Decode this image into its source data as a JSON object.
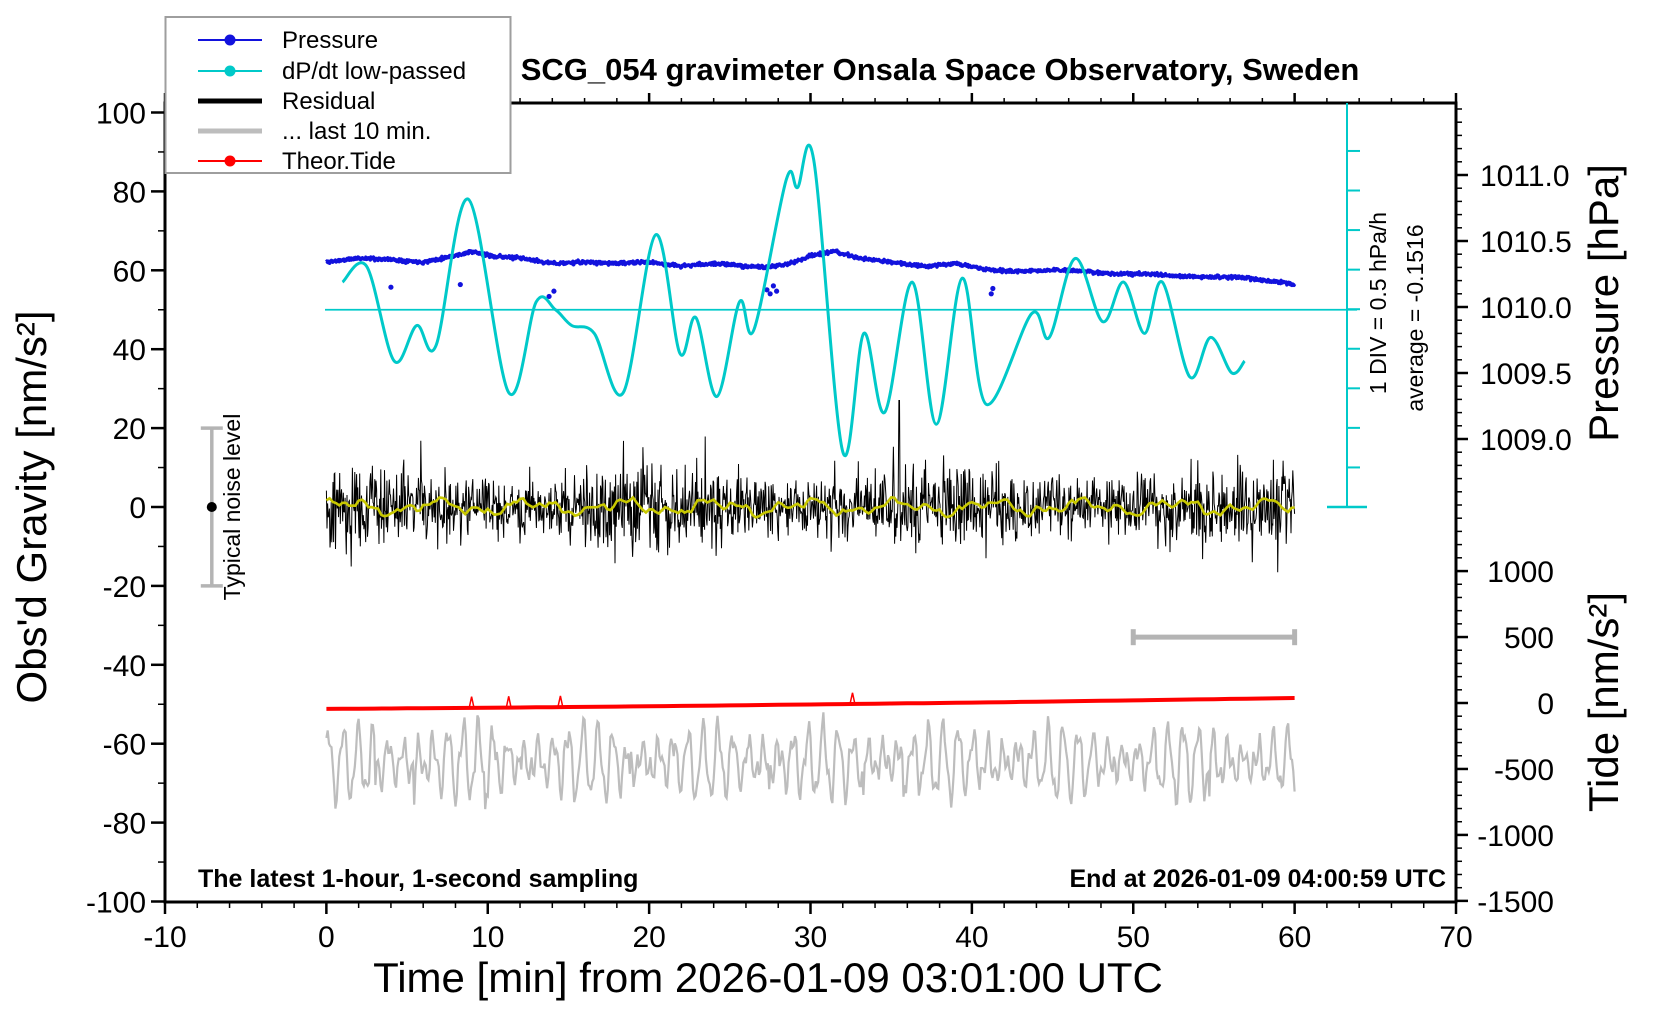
{
  "title": "SCG_054 gravimeter Onsala Space Observatory, Sweden",
  "annotations": {
    "noise_label": "Typical noise level",
    "div_label": "1 DIV = 0.5 hPa/h",
    "average_label": "average = -0.1516",
    "sampling_note": "The latest 1-hour, 1-second sampling",
    "end_note": "End at 2026-01-09 04:00:59 UTC"
  },
  "legend": {
    "items": [
      {
        "label": "Pressure",
        "color": "#1212dd",
        "style": "line-dot"
      },
      {
        "label": "dP/dt low-passed",
        "color": "#00c9c9",
        "style": "line-dot"
      },
      {
        "label": "Residual",
        "color": "#000000",
        "style": "thick-line"
      },
      {
        "label": "... last 10 min.",
        "color": "#bdbdbd",
        "style": "thick-line"
      },
      {
        "label": "Theor.Tide",
        "color": "#ff0000",
        "style": "line-dot"
      }
    ]
  },
  "axes": {
    "x": {
      "label": "Time [min] from 2026-01-09 03:01:00 UTC",
      "range": [
        -10,
        70
      ],
      "major_ticks": [
        -10,
        0,
        10,
        20,
        30,
        40,
        50,
        60,
        70
      ],
      "major_labels": [
        "-10",
        "0",
        "10",
        "20",
        "30",
        "40",
        "50",
        "60",
        "70"
      ],
      "minor_step": 2
    },
    "y_left": {
      "label": "Obs'd Gravity [nm/s²]",
      "range": [
        -100,
        100
      ],
      "major_ticks": [
        100,
        80,
        60,
        40,
        20,
        0,
        -20,
        -40,
        -60,
        -80,
        -100
      ],
      "major_labels": [
        "100",
        "80",
        "60",
        "40",
        "20",
        "0",
        "-20",
        "-40",
        "-60",
        "-80",
        "-100"
      ],
      "minor_step": 10
    },
    "y_right_pressure": {
      "label": "Pressure [hPa]",
      "major_ticks": [
        1011.0,
        1010.5,
        1010.0,
        1009.5,
        1009.0
      ],
      "major_labels": [
        "1011.0",
        "1010.5",
        "1010.0",
        "1009.5",
        "1009.0"
      ],
      "minor_step": 0.1
    },
    "y_right_tide": {
      "label": "Tide [nm/s²]",
      "major_ticks": [
        1000,
        500,
        0,
        -500,
        -1000,
        -1500
      ],
      "major_labels": [
        "1000",
        "500",
        "0",
        "-500",
        "-1000",
        "-1500"
      ],
      "minor_step": 100
    }
  },
  "chart_data": {
    "type": "line",
    "xlabel": "Time [min] from 2026-01-09 03:01:00 UTC",
    "x_range_min": [
      -10,
      70
    ],
    "data_span_min": [
      0,
      60
    ],
    "grid": false,
    "legend_position": "top-left",
    "series": [
      {
        "name": "Pressure",
        "axis": "pressure_hPa",
        "color": "#1212dd",
        "points": [
          [
            0,
            1010.34
          ],
          [
            2,
            1010.37
          ],
          [
            4,
            1010.36
          ],
          [
            6,
            1010.34
          ],
          [
            8,
            1010.39
          ],
          [
            9,
            1010.42
          ],
          [
            10,
            1010.39
          ],
          [
            12,
            1010.37
          ],
          [
            14,
            1010.33
          ],
          [
            16,
            1010.34
          ],
          [
            18,
            1010.33
          ],
          [
            20,
            1010.34
          ],
          [
            22,
            1010.31
          ],
          [
            24,
            1010.33
          ],
          [
            26,
            1010.31
          ],
          [
            27.5,
            1010.3
          ],
          [
            29,
            1010.34
          ],
          [
            30,
            1010.39
          ],
          [
            31.5,
            1010.42
          ],
          [
            33,
            1010.37
          ],
          [
            35,
            1010.34
          ],
          [
            37,
            1010.31
          ],
          [
            39,
            1010.33
          ],
          [
            41,
            1010.28
          ],
          [
            43,
            1010.27
          ],
          [
            45,
            1010.28
          ],
          [
            47,
            1010.27
          ],
          [
            49,
            1010.25
          ],
          [
            51,
            1010.25
          ],
          [
            53,
            1010.23
          ],
          [
            55,
            1010.23
          ],
          [
            57,
            1010.22
          ],
          [
            59,
            1010.19
          ],
          [
            60,
            1010.17
          ]
        ],
        "outlier_dots": [
          [
            4.0,
            1010.15
          ],
          [
            8.3,
            1010.17
          ],
          [
            13.8,
            1010.08
          ],
          [
            14.1,
            1010.12
          ],
          [
            27.3,
            1010.13
          ],
          [
            27.5,
            1010.1
          ],
          [
            27.7,
            1010.16
          ],
          [
            27.9,
            1010.12
          ],
          [
            41.2,
            1010.1
          ],
          [
            41.3,
            1010.14
          ]
        ]
      },
      {
        "name": "dP/dt low-passed",
        "axis": "gravity_plot_units",
        "color": "#00c9c9",
        "zero_reference_gravity_units": 50,
        "scale_note": "1 DIV = 0.5 hPa/h, average = -0.1516 hPa/h",
        "points": [
          [
            1.0,
            57
          ],
          [
            2.5,
            61
          ],
          [
            4.2,
            37
          ],
          [
            5.6,
            46
          ],
          [
            6.8,
            41
          ],
          [
            8.8,
            78
          ],
          [
            11.3,
            29
          ],
          [
            13.0,
            52
          ],
          [
            14.2,
            50
          ],
          [
            15.2,
            46
          ],
          [
            16.6,
            44
          ],
          [
            18.4,
            29
          ],
          [
            20.4,
            69
          ],
          [
            21.9,
            39
          ],
          [
            22.9,
            48
          ],
          [
            24.2,
            28
          ],
          [
            25.6,
            52
          ],
          [
            26.5,
            45
          ],
          [
            28.5,
            83
          ],
          [
            29.2,
            81
          ],
          [
            30.2,
            88
          ],
          [
            32.0,
            14
          ],
          [
            33.3,
            44
          ],
          [
            34.6,
            24
          ],
          [
            36.3,
            57
          ],
          [
            37.8,
            21
          ],
          [
            39.4,
            58
          ],
          [
            40.9,
            26
          ],
          [
            43.7,
            49
          ],
          [
            44.8,
            43
          ],
          [
            46.4,
            63
          ],
          [
            48.1,
            47
          ],
          [
            49.4,
            57
          ],
          [
            50.7,
            44
          ],
          [
            51.8,
            57
          ],
          [
            53.5,
            33
          ],
          [
            54.8,
            43
          ],
          [
            56.1,
            34
          ],
          [
            56.9,
            37
          ]
        ]
      },
      {
        "name": "Residual",
        "axis": "gravity_nm_s2",
        "color": "#000000",
        "noise_band": {
          "mean": 0,
          "typical_halfwidth": 9,
          "spike_halfwidth": 20,
          "max_spike": 27,
          "largest_spike_at_min": 35.5
        }
      },
      {
        "name": "Residual smoothed",
        "axis": "gravity_nm_s2",
        "color": "#c8c800",
        "noise_band": {
          "mean": 0,
          "typical_halfwidth": 2
        }
      },
      {
        "name": "... last 10 min.",
        "axis": "gravity_nm_s2",
        "color": "#bdbdbd",
        "oscillation": {
          "center": -64.5,
          "amplitude_min": 3,
          "amplitude_max": 9,
          "period_min": 0.93,
          "extreme_low": -78
        },
        "window_bar": {
          "from_min": 50,
          "to_min": 60,
          "at_gravity": -33
        }
      },
      {
        "name": "Theor.Tide",
        "axis": "tide_nm_s2",
        "color": "#ff0000",
        "points": [
          [
            0,
            -45
          ],
          [
            10,
            -36
          ],
          [
            20,
            -25
          ],
          [
            30,
            -11
          ],
          [
            40,
            3
          ],
          [
            50,
            20
          ],
          [
            60,
            38
          ]
        ],
        "spike_marks_min": [
          9.0,
          11.3,
          14.5,
          32.6
        ]
      }
    ],
    "markers": {
      "typical_noise_bar": {
        "x_min": -7.1,
        "gravity_from": -20,
        "gravity_to": 20,
        "dot_at": 0
      }
    },
    "axis_ranges": {
      "gravity_nm_s2": [
        -100,
        100
      ],
      "pressure_hPa_labeled": [
        1009.0,
        1011.0
      ],
      "tide_nm_s2": [
        -1500,
        1000
      ]
    }
  }
}
